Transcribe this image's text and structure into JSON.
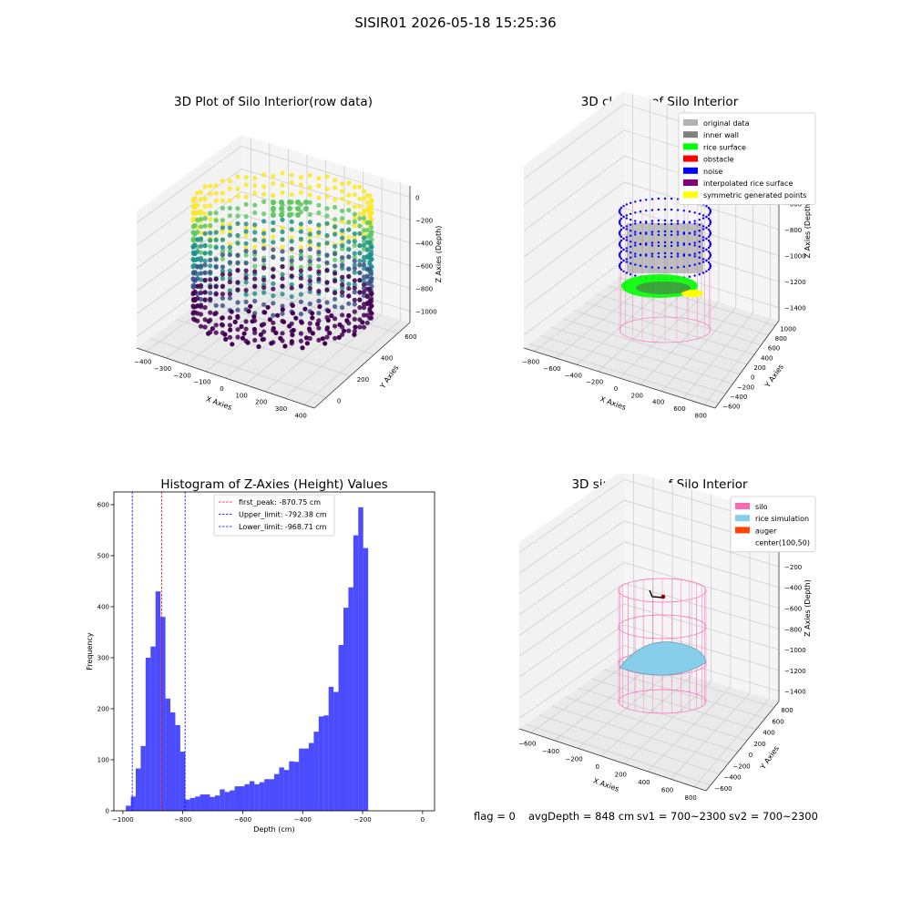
{
  "figure": {
    "suptitle": "SISIR01 2026-05-18 15:25:36",
    "footer": {
      "flag": "flag = 0",
      "avg_depth": "avgDepth = 848 cm",
      "sv1": "sv1 = 700~2300",
      "sv2": "sv2 = 700~2300"
    }
  },
  "panels": {
    "raw": {
      "title": "3D Plot of Silo Interior(row data)",
      "xlabel": "X Axies",
      "ylabel": "Y Axies",
      "zlabel": "Z Axies (Depth)",
      "xticks": [
        "−400",
        "−300",
        "−200",
        "−100",
        "0",
        "100",
        "200",
        "300",
        "400"
      ],
      "yticks": [
        "0",
        "200",
        "400",
        "600"
      ],
      "zticks": [
        "0",
        "−200",
        "−400",
        "−600",
        "−800",
        "−1000"
      ],
      "colormap": [
        "#440154",
        "#3b528b",
        "#21918c",
        "#5ec962",
        "#fde725"
      ]
    },
    "classify": {
      "title": "3D classify of Silo Interior",
      "xlabel": "X Axies",
      "ylabel": "Y Axies",
      "zlabel": "Z Axies (Depth)",
      "xticks": [
        "−800",
        "−600",
        "−400",
        "−200",
        "0",
        "200",
        "400",
        "600",
        "800"
      ],
      "yticks": [
        "−600",
        "−400",
        "−200",
        "0",
        "200",
        "400",
        "600",
        "800",
        "1000"
      ],
      "zticks": [
        "−200",
        "−400",
        "−600",
        "−800",
        "−1000",
        "−1200",
        "−1400"
      ],
      "legend": [
        {
          "label": "original data",
          "color": "#b3b3b3"
        },
        {
          "label": "inner wall",
          "color": "#808080"
        },
        {
          "label": "rice surface",
          "color": "#00ff00"
        },
        {
          "label": "obstacle",
          "color": "#ff0000"
        },
        {
          "label": "noise",
          "color": "#0000ff"
        },
        {
          "label": "interpolated rice surface",
          "color": "#800080"
        },
        {
          "label": "symmetric generated points",
          "color": "#ffff00"
        }
      ]
    },
    "simulation": {
      "title": "3D simulation of Silo Interior",
      "xlabel": "X Axies",
      "ylabel": "Y Axies",
      "zlabel": "Z Axies (Depth)",
      "xticks": [
        "−600",
        "−400",
        "−200",
        "0",
        "200",
        "400",
        "600",
        "800"
      ],
      "yticks": [
        "−600",
        "−400",
        "−200",
        "0",
        "200",
        "400",
        "600",
        "800"
      ],
      "zticks": [
        "200",
        "0",
        "−200",
        "−400",
        "−600",
        "−800",
        "−1000",
        "−1200",
        "−1400"
      ],
      "legend": [
        {
          "label": "silo",
          "color": "#ff69b4"
        },
        {
          "label": "rice simulation",
          "color": "#87ceeb"
        },
        {
          "label": "auger",
          "color": "#ff4500"
        },
        {
          "label": "center(100,50)",
          "color": ""
        }
      ]
    }
  },
  "chart_data": {
    "type": "bar",
    "title": "Histogram of Z-Axies (Height) Values",
    "xlabel": "Depth (cm)",
    "ylabel": "Frequency",
    "xlim": [
      -1030,
      40
    ],
    "ylim": [
      0,
      625
    ],
    "xticks": [
      -1000,
      -800,
      -600,
      -400,
      -200,
      0
    ],
    "yticks": [
      0,
      100,
      200,
      300,
      400,
      500,
      600
    ],
    "bar_color": "#0000ff",
    "bin_width": 16.5,
    "bin_start": -990,
    "values": [
      10,
      28,
      83,
      127,
      300,
      322,
      430,
      380,
      220,
      193,
      168,
      116,
      22,
      25,
      28,
      32,
      32,
      27,
      30,
      42,
      37,
      40,
      48,
      48,
      52,
      58,
      52,
      56,
      62,
      62,
      72,
      85,
      80,
      97,
      96,
      122,
      122,
      133,
      155,
      185,
      187,
      243,
      233,
      325,
      398,
      438,
      540,
      595,
      515
    ],
    "vlines": [
      {
        "label": "first_peak: -870.75 cm",
        "x": -870.75,
        "color": "#ff0000"
      },
      {
        "label": "Upper_limit: -792.38 cm",
        "x": -792.38,
        "color": "#0000ff"
      },
      {
        "label": "Lower_limit: -968.71 cm",
        "x": -968.71,
        "color": "#0000ff"
      }
    ]
  }
}
